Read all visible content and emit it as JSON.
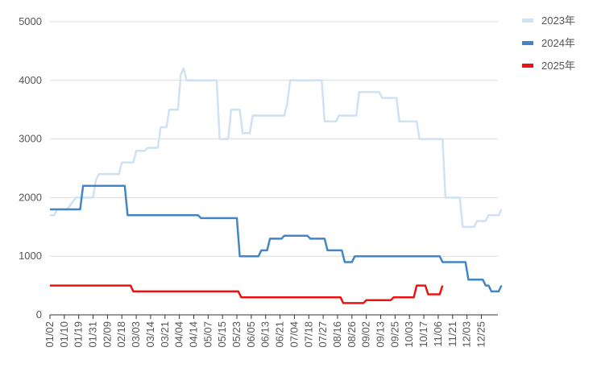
{
  "chart_data": {
    "type": "line",
    "title": "",
    "xlabel": "",
    "ylabel": "",
    "ylim": [
      0,
      5000
    ],
    "yticks": [
      0,
      1000,
      2000,
      3000,
      4000,
      5000
    ],
    "grid": true,
    "legend_position": "top-right",
    "x_tick_labels": [
      "01/02",
      "01/10",
      "01/19",
      "01/31",
      "02/09",
      "02/18",
      "03/03",
      "03/14",
      "03/21",
      "04/04",
      "04/14",
      "05/07",
      "05/15",
      "05/23",
      "06/05",
      "06/13",
      "06/21",
      "07/04",
      "07/18",
      "07/27",
      "08/16",
      "08/26",
      "09/02",
      "09/13",
      "09/25",
      "10/03",
      "10/17",
      "11/06",
      "11/21",
      "12/03",
      "12/25"
    ],
    "series": [
      {
        "name": "2023年",
        "color": "#cfe2f3",
        "points": [
          [
            0,
            1700
          ],
          [
            0.3,
            1700
          ],
          [
            0.5,
            1800
          ],
          [
            1.2,
            1800
          ],
          [
            1.8,
            2000
          ],
          [
            3.0,
            2000
          ],
          [
            3.2,
            2300
          ],
          [
            3.4,
            2400
          ],
          [
            4.8,
            2400
          ],
          [
            5.0,
            2600
          ],
          [
            5.8,
            2600
          ],
          [
            6.0,
            2800
          ],
          [
            6.6,
            2800
          ],
          [
            6.8,
            2850
          ],
          [
            7.5,
            2850
          ],
          [
            7.7,
            3200
          ],
          [
            8.1,
            3200
          ],
          [
            8.3,
            3500
          ],
          [
            8.9,
            3500
          ],
          [
            9.1,
            4100
          ],
          [
            9.3,
            4200
          ],
          [
            9.5,
            4000
          ],
          [
            11.6,
            4000
          ],
          [
            11.8,
            3000
          ],
          [
            12.4,
            3000
          ],
          [
            12.6,
            3500
          ],
          [
            13.2,
            3500
          ],
          [
            13.4,
            3100
          ],
          [
            13.9,
            3100
          ],
          [
            14.1,
            3400
          ],
          [
            16.3,
            3400
          ],
          [
            16.5,
            3600
          ],
          [
            16.7,
            4000
          ],
          [
            18.9,
            4000
          ],
          [
            19.1,
            3300
          ],
          [
            19.9,
            3300
          ],
          [
            20.1,
            3400
          ],
          [
            21.3,
            3400
          ],
          [
            21.5,
            3800
          ],
          [
            22.9,
            3800
          ],
          [
            23.1,
            3700
          ],
          [
            24.1,
            3700
          ],
          [
            24.3,
            3300
          ],
          [
            25.5,
            3300
          ],
          [
            25.7,
            3000
          ],
          [
            27.3,
            3000
          ],
          [
            27.5,
            2000
          ],
          [
            28.5,
            2000
          ],
          [
            28.7,
            1500
          ],
          [
            29.5,
            1500
          ],
          [
            29.7,
            1600
          ],
          [
            30.3,
            1600
          ],
          [
            30.5,
            1700
          ],
          [
            31.2,
            1700
          ],
          [
            31.4,
            1800
          ]
        ]
      },
      {
        "name": "2024年",
        "color": "#4286c6",
        "points": [
          [
            0,
            1800
          ],
          [
            2.1,
            1800
          ],
          [
            2.3,
            2200
          ],
          [
            5.2,
            2200
          ],
          [
            5.4,
            1700
          ],
          [
            10.3,
            1700
          ],
          [
            10.5,
            1650
          ],
          [
            13.0,
            1650
          ],
          [
            13.2,
            1000
          ],
          [
            14.5,
            1000
          ],
          [
            14.7,
            1100
          ],
          [
            15.1,
            1100
          ],
          [
            15.3,
            1300
          ],
          [
            16.1,
            1300
          ],
          [
            16.3,
            1350
          ],
          [
            17.9,
            1350
          ],
          [
            18.1,
            1300
          ],
          [
            19.1,
            1300
          ],
          [
            19.3,
            1100
          ],
          [
            20.3,
            1100
          ],
          [
            20.5,
            900
          ],
          [
            21.0,
            900
          ],
          [
            21.2,
            1000
          ],
          [
            27.1,
            1000
          ],
          [
            27.3,
            900
          ],
          [
            28.9,
            900
          ],
          [
            29.1,
            600
          ],
          [
            30.1,
            600
          ],
          [
            30.3,
            500
          ],
          [
            30.5,
            500
          ],
          [
            30.7,
            400
          ],
          [
            31.2,
            400
          ],
          [
            31.4,
            500
          ]
        ]
      },
      {
        "name": "2025年",
        "color": "#ee1111",
        "points": [
          [
            0,
            500
          ],
          [
            5.6,
            500
          ],
          [
            5.8,
            400
          ],
          [
            13.1,
            400
          ],
          [
            13.3,
            300
          ],
          [
            20.2,
            300
          ],
          [
            20.4,
            200
          ],
          [
            21.8,
            200
          ],
          [
            22.0,
            250
          ],
          [
            23.7,
            250
          ],
          [
            23.9,
            300
          ],
          [
            25.3,
            300
          ],
          [
            25.5,
            500
          ],
          [
            26.1,
            500
          ],
          [
            26.3,
            350
          ],
          [
            27.1,
            350
          ],
          [
            27.3,
            500
          ]
        ]
      }
    ]
  }
}
